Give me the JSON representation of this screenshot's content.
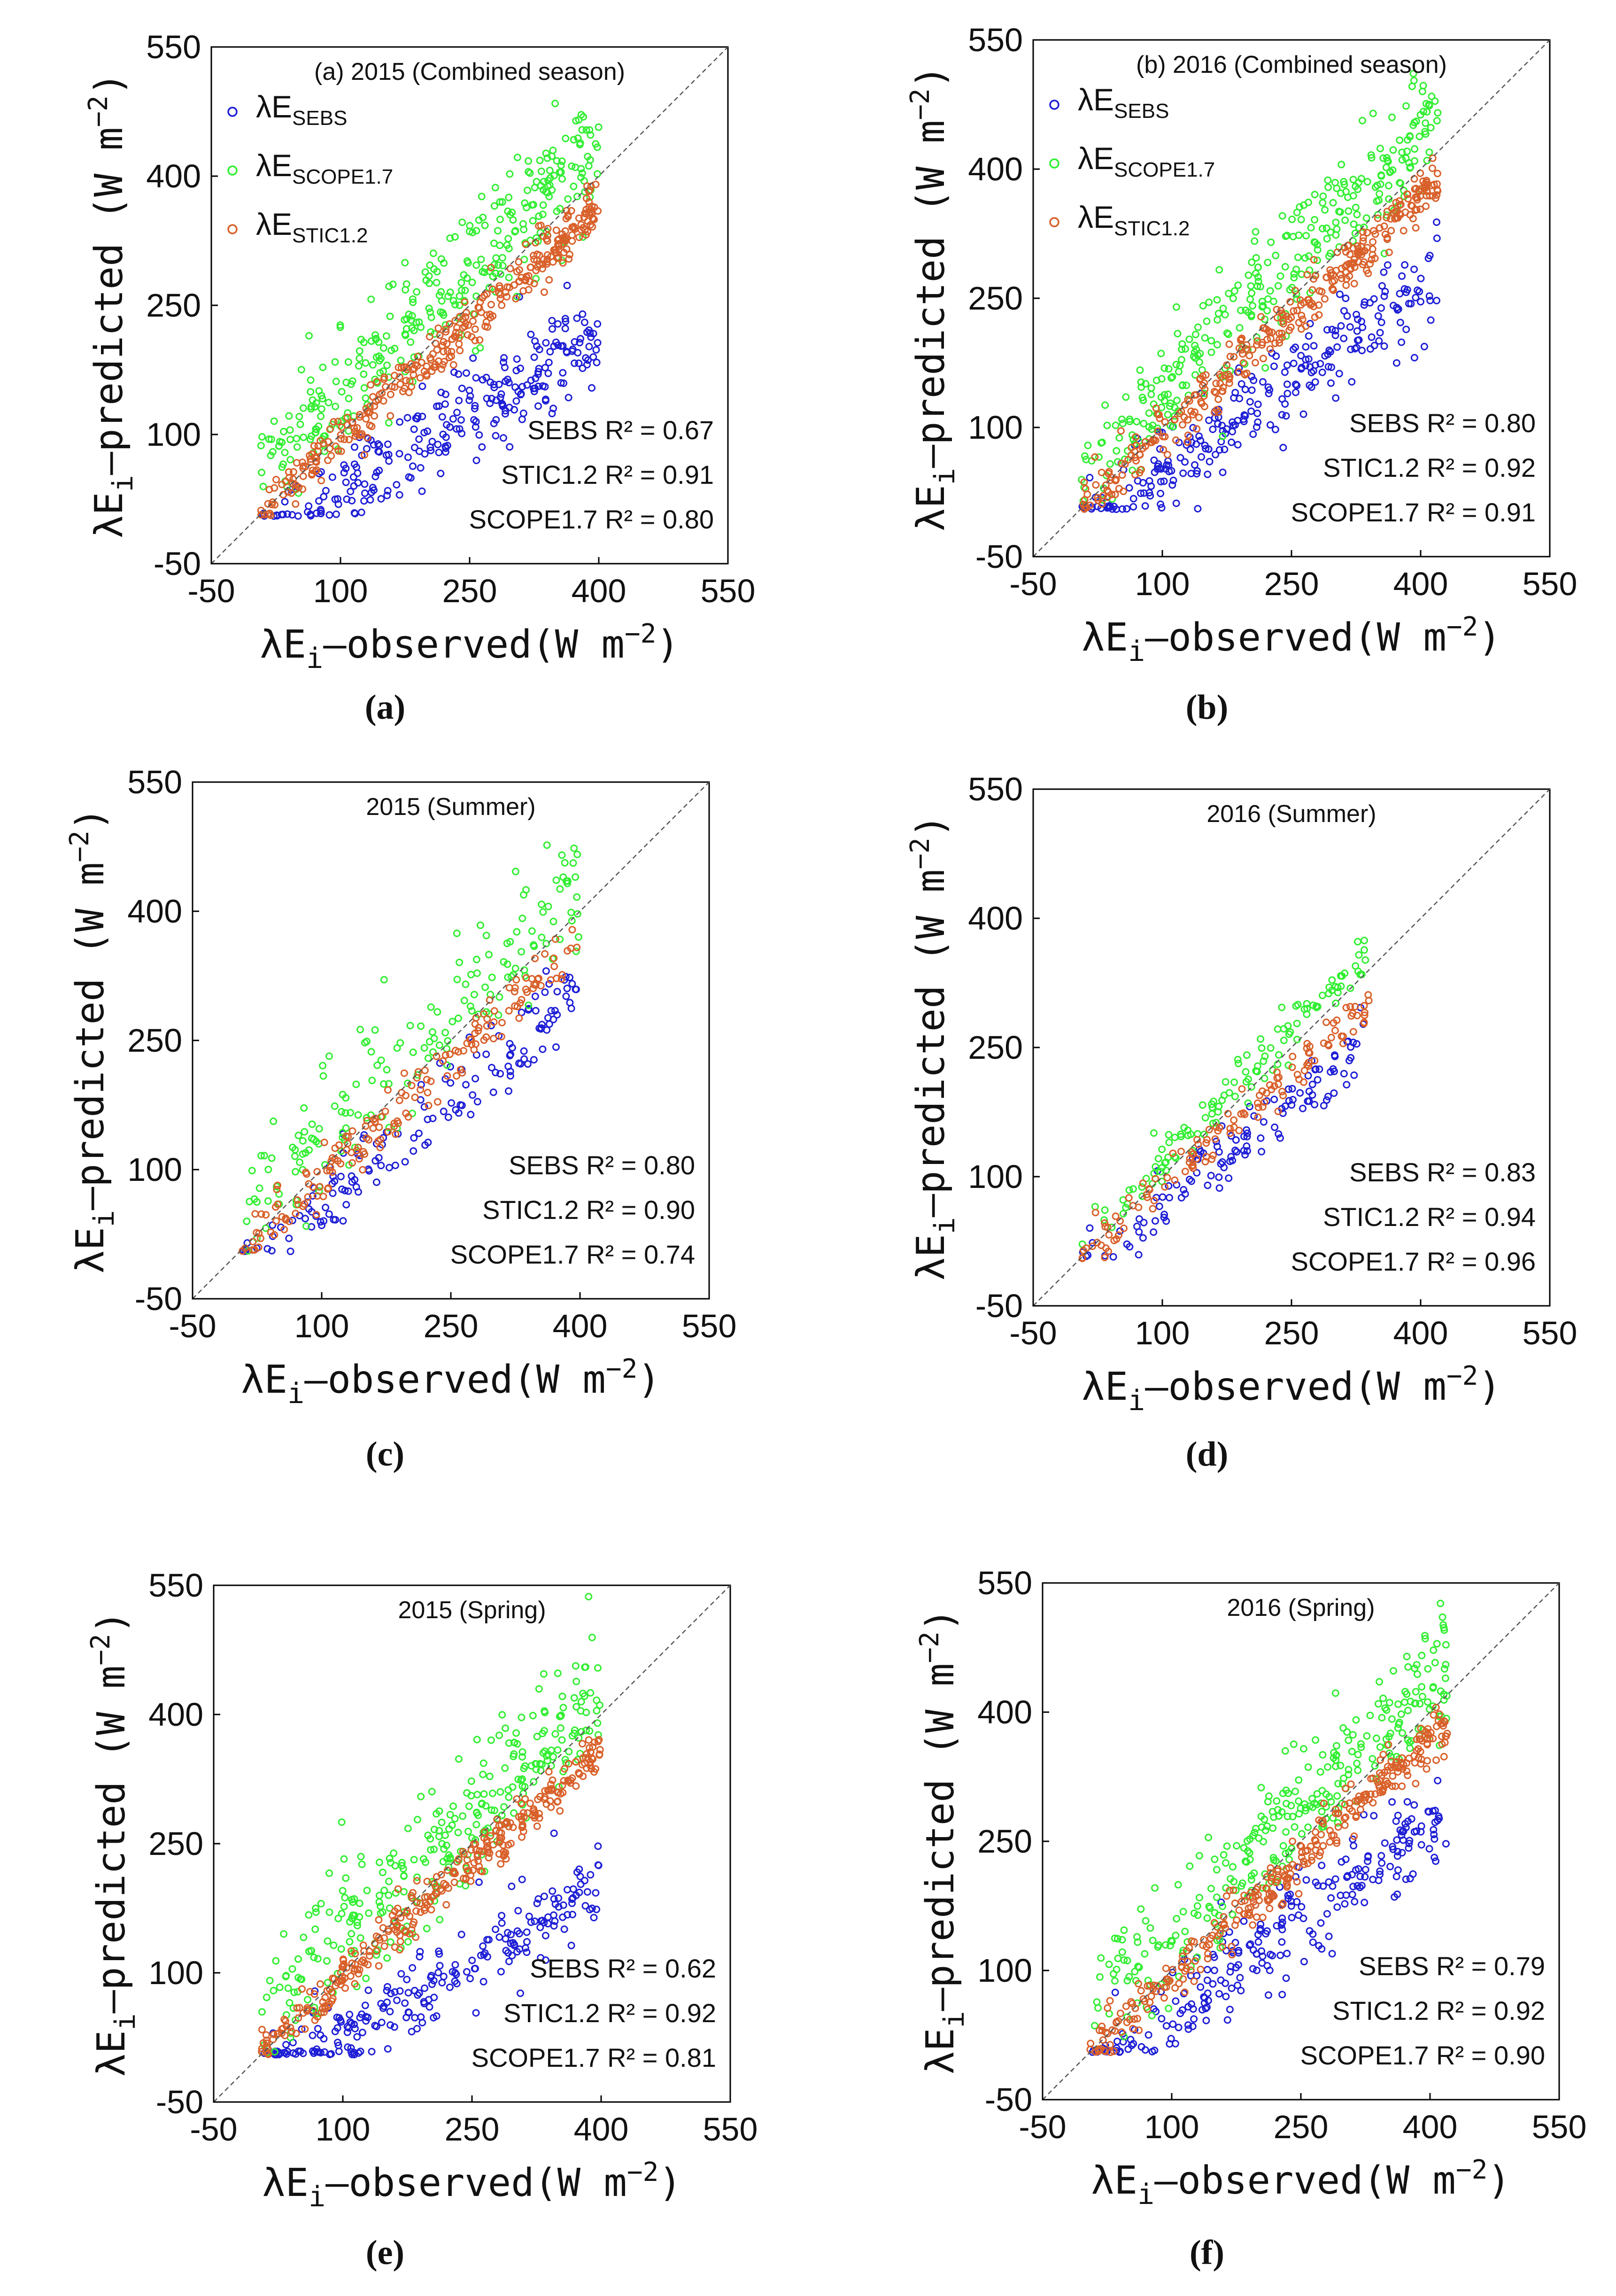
{
  "figure": {
    "panels": [
      {
        "label": "(a)",
        "title": "(a) 2015 (Combined season)",
        "legend": true,
        "stats": [
          "SEBS    R² = 0.67",
          "STIC1.2  R² = 0.91",
          "SCOPE1.7 R² = 0.80"
        ]
      },
      {
        "label": "(b)",
        "title": "(b) 2016 (Combined season)",
        "legend": true,
        "stats": [
          "SEBS    R² = 0.80",
          "STIC1.2  R² = 0.92",
          "SCOPE1.7 R² = 0.91"
        ]
      },
      {
        "label": "(c)",
        "title": "2015 (Summer)",
        "legend": false,
        "stats": [
          "SEBS    R² = 0.80",
          "STIC1.2  R² = 0.90",
          "SCOPE1.7 R² = 0.74"
        ]
      },
      {
        "label": "(d)",
        "title": "2016 (Summer)",
        "legend": false,
        "stats": [
          "SEBS    R² = 0.83",
          "STIC1.2  R² = 0.94",
          "SCOPE1.7 R² = 0.96"
        ]
      },
      {
        "label": "(e)",
        "title": "2015 (Spring)",
        "legend": false,
        "stats": [
          "SEBS    R² = 0.62",
          "STIC1.2  R² = 0.92",
          "SCOPE1.7 R² = 0.81"
        ]
      },
      {
        "label": "(f)",
        "title": "2016 (Spring)",
        "legend": false,
        "stats": [
          "SEBS    R² = 0.79",
          "STIC1.2  R² = 0.92",
          "SCOPE1.7 R² = 0.90"
        ]
      }
    ]
  },
  "chart_data": [
    {
      "type": "scatter",
      "panel": "(a)",
      "title": "(a) 2015 (Combined season)",
      "xlabel": "λEi–observed(W m⁻²)",
      "ylabel": "λEi–predicted (W m⁻²)",
      "xlim": [
        -50,
        550
      ],
      "ylim": [
        -50,
        550
      ],
      "xticks": [
        -50,
        100,
        250,
        400,
        550
      ],
      "yticks": [
        -50,
        100,
        250,
        400,
        550
      ],
      "reference_line": "1:1",
      "series": [
        {
          "name": "λE SEBS",
          "color": "#1f1fd6",
          "slope": 0.62,
          "intercept": -30,
          "spread": 26,
          "range": [
            5,
            400
          ],
          "n": 260
        },
        {
          "name": "λE SCOPE1.7",
          "color": "#33ee33",
          "slope": 0.98,
          "intercept": 45,
          "spread": 35,
          "range": [
            5,
            400
          ],
          "n": 320
        },
        {
          "name": "λE STIC1.2",
          "color": "#d9602a",
          "slope": 0.9,
          "intercept": 5,
          "spread": 15,
          "range": [
            5,
            400
          ],
          "n": 340
        }
      ],
      "r2": {
        "SEBS": 0.67,
        "STIC1.2": 0.91,
        "SCOPE1.7": 0.8
      }
    },
    {
      "type": "scatter",
      "panel": "(b)",
      "title": "(b) 2016 (Combined season)",
      "xlabel": "λEi–observed(W m⁻²)",
      "ylabel": "λEi–predicted (W m⁻²)",
      "xlim": [
        -50,
        550
      ],
      "ylim": [
        -50,
        550
      ],
      "xticks": [
        -50,
        100,
        250,
        400,
        550
      ],
      "yticks": [
        -50,
        100,
        250,
        400,
        550
      ],
      "reference_line": "1:1",
      "series": [
        {
          "name": "λE SEBS",
          "color": "#1f1fd6",
          "slope": 0.72,
          "intercept": -25,
          "spread": 26,
          "range": [
            5,
            420
          ],
          "n": 260
        },
        {
          "name": "λE SCOPE1.7",
          "color": "#33ee33",
          "slope": 1.0,
          "intercept": 40,
          "spread": 32,
          "range": [
            5,
            420
          ],
          "n": 320
        },
        {
          "name": "λE STIC1.2",
          "color": "#d9602a",
          "slope": 0.93,
          "intercept": 0,
          "spread": 14,
          "range": [
            5,
            420
          ],
          "n": 340
        }
      ],
      "r2": {
        "SEBS": 0.8,
        "STIC1.2": 0.92,
        "SCOPE1.7": 0.91
      }
    },
    {
      "type": "scatter",
      "panel": "(c)",
      "title": "2015 (Summer)",
      "xlabel": "λEi–observed(W m⁻²)",
      "ylabel": "λEi–predicted (W m⁻²)",
      "xlim": [
        -50,
        550
      ],
      "ylim": [
        -50,
        550
      ],
      "xticks": [
        -50,
        100,
        250,
        400,
        550
      ],
      "yticks": [
        -50,
        100,
        250,
        400,
        550
      ],
      "reference_line": "1:1",
      "series": [
        {
          "name": "λE SEBS",
          "color": "#1f1fd6",
          "slope": 0.85,
          "intercept": -30,
          "spread": 24,
          "range": [
            5,
            400
          ],
          "n": 150
        },
        {
          "name": "λE SCOPE1.7",
          "color": "#33ee33",
          "slope": 0.95,
          "intercept": 45,
          "spread": 40,
          "range": [
            5,
            400
          ],
          "n": 170
        },
        {
          "name": "λE STIC1.2",
          "color": "#d9602a",
          "slope": 0.9,
          "intercept": 5,
          "spread": 16,
          "range": [
            5,
            400
          ],
          "n": 170
        }
      ],
      "r2": {
        "SEBS": 0.8,
        "STIC1.2": 0.9,
        "SCOPE1.7": 0.74
      }
    },
    {
      "type": "scatter",
      "panel": "(d)",
      "title": "2016 (Summer)",
      "xlabel": "λEi–observed(W m⁻²)",
      "ylabel": "λEi–predicted (W m⁻²)",
      "xlim": [
        -50,
        550
      ],
      "ylim": [
        -50,
        550
      ],
      "xticks": [
        -50,
        100,
        250,
        400,
        550
      ],
      "yticks": [
        -50,
        100,
        250,
        400,
        550
      ],
      "reference_line": "1:1",
      "series": [
        {
          "name": "λE SEBS",
          "color": "#1f1fd6",
          "slope": 0.8,
          "intercept": -15,
          "spread": 18,
          "range": [
            5,
            340
          ],
          "n": 120
        },
        {
          "name": "λE SCOPE1.7",
          "color": "#33ee33",
          "slope": 1.02,
          "intercept": 15,
          "spread": 16,
          "range": [
            5,
            340
          ],
          "n": 120
        },
        {
          "name": "λE STIC1.2",
          "color": "#d9602a",
          "slope": 0.88,
          "intercept": 3,
          "spread": 12,
          "range": [
            5,
            340
          ],
          "n": 130
        }
      ],
      "r2": {
        "SEBS": 0.83,
        "STIC1.2": 0.94,
        "SCOPE1.7": 0.96
      }
    },
    {
      "type": "scatter",
      "panel": "(e)",
      "title": "2015 (Spring)",
      "xlabel": "λEi–observed(W m⁻²)",
      "ylabel": "λEi–predicted (W m⁻²)",
      "xlim": [
        -50,
        550
      ],
      "ylim": [
        -50,
        550
      ],
      "xticks": [
        -50,
        100,
        250,
        400,
        550
      ],
      "yticks": [
        -50,
        100,
        250,
        400,
        550
      ],
      "reference_line": "1:1",
      "series": [
        {
          "name": "λE SEBS",
          "color": "#1f1fd6",
          "slope": 0.58,
          "intercept": -30,
          "spread": 24,
          "range": [
            5,
            400
          ],
          "n": 240
        },
        {
          "name": "λE SCOPE1.7",
          "color": "#33ee33",
          "slope": 0.95,
          "intercept": 45,
          "spread": 38,
          "range": [
            5,
            400
          ],
          "n": 300
        },
        {
          "name": "λE STIC1.2",
          "color": "#d9602a",
          "slope": 0.9,
          "intercept": 5,
          "spread": 14,
          "range": [
            5,
            400
          ],
          "n": 330
        }
      ],
      "r2": {
        "SEBS": 0.62,
        "STIC1.2": 0.92,
        "SCOPE1.7": 0.81
      }
    },
    {
      "type": "scatter",
      "panel": "(f)",
      "title": "2016 (Spring)",
      "xlabel": "λEi–observed(W m⁻²)",
      "ylabel": "λEi–predicted (W m⁻²)",
      "xlim": [
        -50,
        550
      ],
      "ylim": [
        -50,
        550
      ],
      "xticks": [
        -50,
        100,
        250,
        400,
        550
      ],
      "yticks": [
        -50,
        100,
        250,
        400,
        550
      ],
      "reference_line": "1:1",
      "series": [
        {
          "name": "λE SEBS",
          "color": "#1f1fd6",
          "slope": 0.72,
          "intercept": -20,
          "spread": 26,
          "range": [
            5,
            420
          ],
          "n": 250
        },
        {
          "name": "λE SCOPE1.7",
          "color": "#33ee33",
          "slope": 1.0,
          "intercept": 40,
          "spread": 32,
          "range": [
            5,
            420
          ],
          "n": 300
        },
        {
          "name": "λE STIC1.2",
          "color": "#d9602a",
          "slope": 0.92,
          "intercept": 0,
          "spread": 14,
          "range": [
            5,
            420
          ],
          "n": 320
        }
      ],
      "r2": {
        "SEBS": 0.79,
        "STIC1.2": 0.92,
        "SCOPE1.7": 0.9
      }
    }
  ],
  "legend": {
    "prefix": "λE",
    "entries": [
      {
        "sub": "SEBS",
        "color": "#1f1fd6"
      },
      {
        "sub": "SCOPE1.7",
        "color": "#33ee33"
      },
      {
        "sub": "STIC1.2",
        "color": "#d9602a"
      }
    ]
  },
  "axis_text": {
    "ylabel_main": "λE",
    "ylabel_sub": "i",
    "ylabel_rest": "–predicted (W m",
    "xlabel_main": "λE",
    "xlabel_sub": "i",
    "xlabel_rest": "–observed(W m",
    "unit_exp": "−2",
    "close_paren": ")"
  }
}
